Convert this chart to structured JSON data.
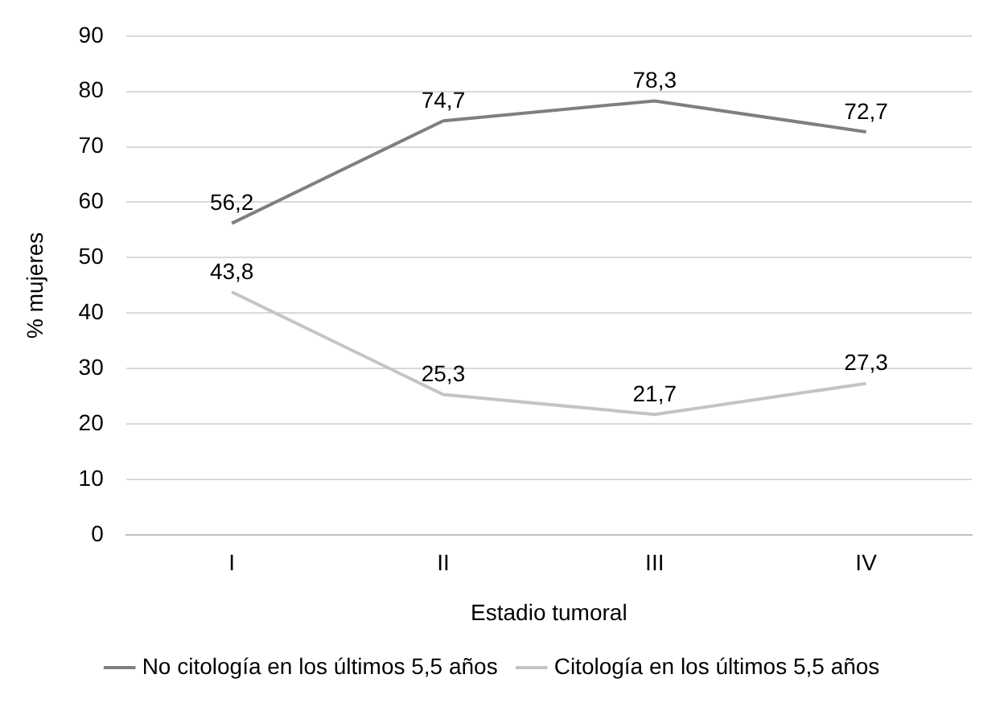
{
  "chart_data": {
    "type": "line",
    "xlabel": "Estadio tumoral",
    "ylabel": "% mujeres",
    "categories": [
      "I",
      "II",
      "III",
      "IV"
    ],
    "series": [
      {
        "name": "No citología en los últimos 5,5 años",
        "color": "#7f7f7f",
        "values": [
          56.2,
          74.7,
          78.3,
          72.7
        ],
        "value_labels": [
          "56,2",
          "74,7",
          "78,3",
          "72,7"
        ]
      },
      {
        "name": "Citología en los últimos 5,5 años",
        "color": "#c4c4c4",
        "values": [
          43.8,
          25.3,
          21.7,
          27.3
        ],
        "value_labels": [
          "43,8",
          "25,3",
          "21,7",
          "27,3"
        ]
      }
    ],
    "ylim": [
      0,
      90
    ],
    "yticks": [
      0,
      10,
      20,
      30,
      40,
      50,
      60,
      70,
      80,
      90
    ],
    "grid": "y",
    "legend": "bottom",
    "marker": "none"
  }
}
